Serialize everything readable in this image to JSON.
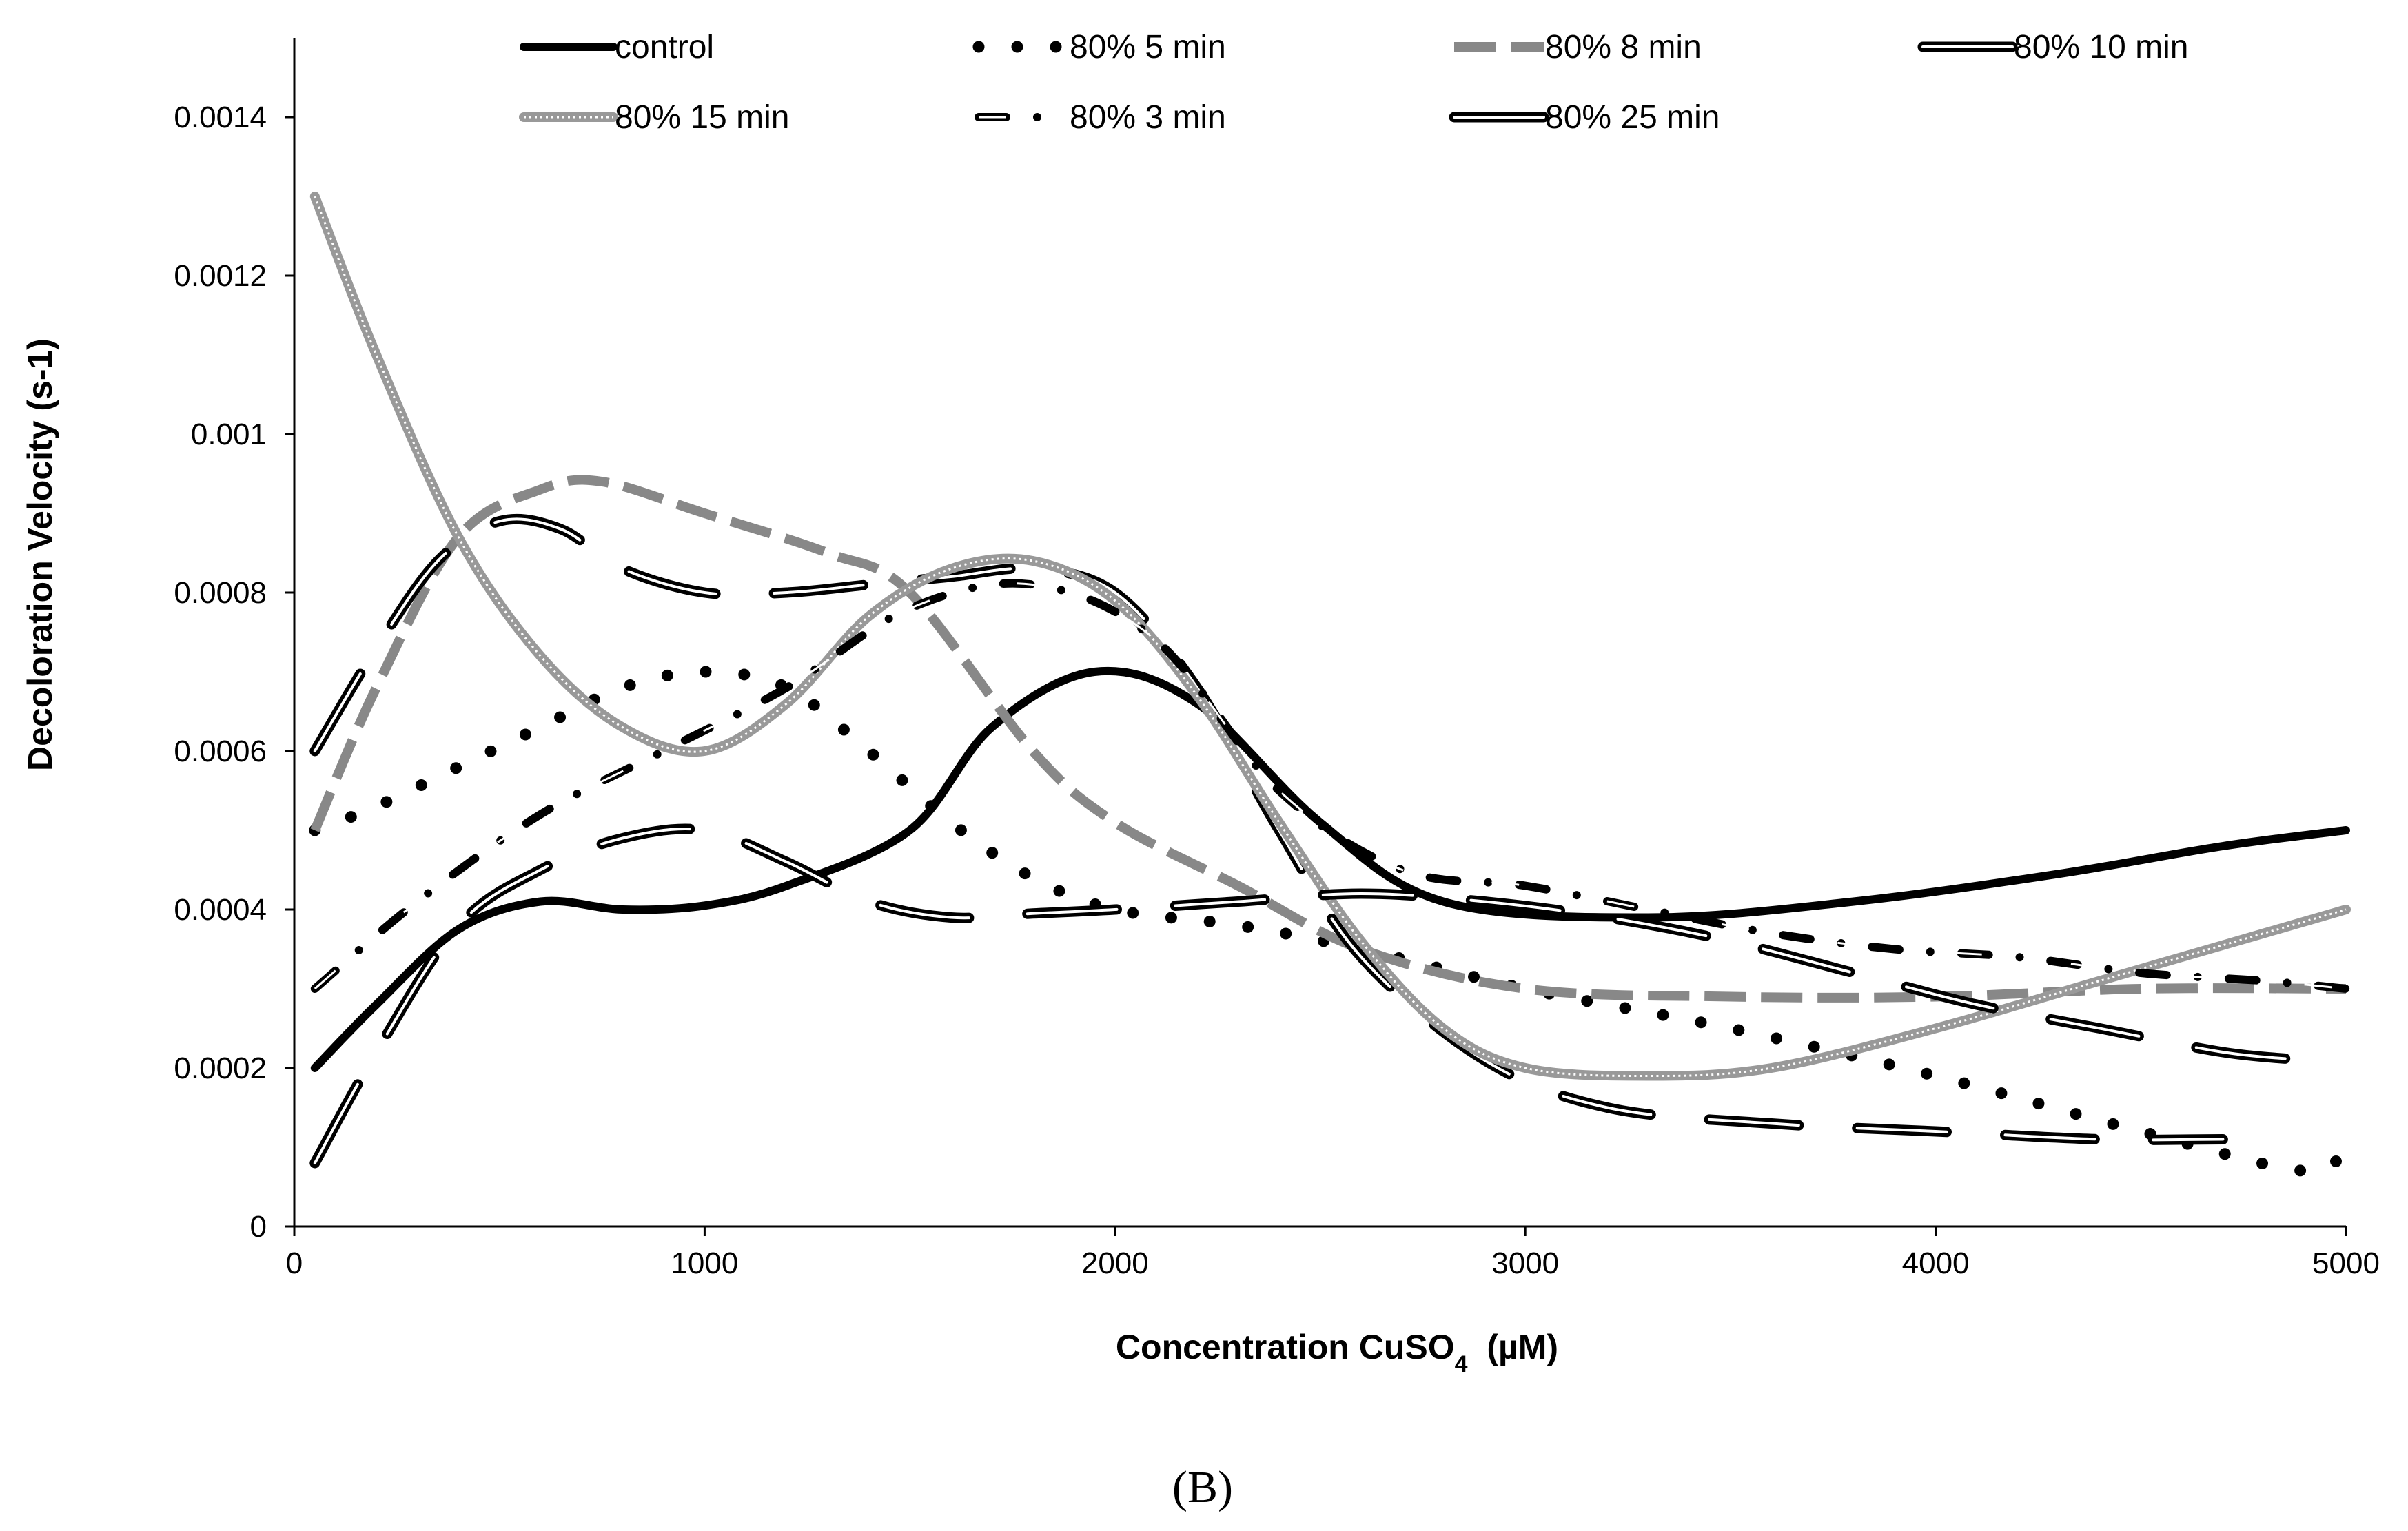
{
  "chart_data": {
    "type": "line",
    "xlabel": "Concentration CuSO4 (µM)",
    "xlabel_parts": {
      "main": "Concentration CuSO",
      "sub": "4",
      "unit": "  (µM)"
    },
    "ylabel": "Decoloration Velocity (s-1)",
    "panel_label": "(B)",
    "xlim": [
      0,
      5000
    ],
    "ylim": [
      0,
      0.0015
    ],
    "xticks": [
      0,
      1000,
      2000,
      3000,
      4000,
      5000
    ],
    "xtick_labels": [
      "0",
      "1000",
      "2000",
      "3000",
      "4000",
      "5000"
    ],
    "yticks": [
      0,
      0.0002,
      0.0004,
      0.0006,
      0.0008,
      0.001,
      0.0012,
      0.0014
    ],
    "ytick_labels": [
      "0",
      "0.0002",
      "0.0004",
      "0.0006",
      "0.0008",
      "0.001",
      "0.0012",
      "0.0014"
    ],
    "grid": false,
    "legend_position": "top",
    "series": [
      {
        "name": "control",
        "color": "#000000",
        "style": "solid",
        "x": [
          50,
          200,
          400,
          600,
          800,
          1000,
          1200,
          1500,
          1700,
          1950,
          2200,
          2500,
          2800,
          3300,
          3800,
          4300,
          4700,
          5000
        ],
        "y": [
          0.0002,
          0.00028,
          0.000375,
          0.00041,
          0.0004,
          0.000405,
          0.00043,
          0.0005,
          0.00063,
          0.0007,
          0.00066,
          0.00051,
          0.00041,
          0.00039,
          0.00041,
          0.000445,
          0.00048,
          0.0005
        ]
      },
      {
        "name": "80% 5 min",
        "color": "#000000",
        "style": "dotted",
        "x": [
          50,
          200,
          400,
          600,
          800,
          1000,
          1200,
          1400,
          1600,
          1800,
          2000,
          2300,
          2600,
          3000,
          3500,
          4000,
          4500,
          4900,
          5000
        ],
        "y": [
          0.0005,
          0.00053,
          0.00058,
          0.00063,
          0.00068,
          0.0007,
          0.00068,
          0.0006,
          0.00051,
          0.00044,
          0.0004,
          0.00038,
          0.00035,
          0.0003,
          0.00025,
          0.00019,
          0.00012,
          7e-05,
          0.0001
        ]
      },
      {
        "name": "80% 8 min",
        "color": "#888888",
        "style": "dashed",
        "x": [
          50,
          200,
          400,
          600,
          750,
          1000,
          1300,
          1500,
          1800,
          2000,
          2300,
          2600,
          3000,
          3500,
          4000,
          4500,
          5000
        ],
        "y": [
          0.0005,
          0.00068,
          0.00087,
          0.00093,
          0.00094,
          0.0009,
          0.00085,
          0.0008,
          0.0006,
          0.00051,
          0.00043,
          0.00035,
          0.0003,
          0.00029,
          0.00029,
          0.0003,
          0.0003
        ]
      },
      {
        "name": "80% 10 min",
        "color": "#000000",
        "style": "double-longdash",
        "x": [
          50,
          200,
          350,
          500,
          650,
          800,
          1000,
          1200,
          1400,
          1600,
          1800,
          2000,
          2200,
          2400,
          2600,
          2900,
          3200,
          3600,
          4000,
          4400,
          4700
        ],
        "y": [
          0.0006,
          0.00073,
          0.00084,
          0.00089,
          0.00088,
          0.00083,
          0.0008,
          0.0008,
          0.00081,
          0.00082,
          0.00083,
          0.0008,
          0.00068,
          0.0005,
          0.00034,
          0.00021,
          0.00015,
          0.00013,
          0.00012,
          0.00011,
          0.00011
        ]
      },
      {
        "name": "80% 15 min",
        "color": "#999999",
        "style": "dotted-thick",
        "x": [
          50,
          200,
          400,
          600,
          800,
          1000,
          1200,
          1400,
          1600,
          1800,
          2000,
          2200,
          2400,
          2600,
          2800,
          3000,
          3300,
          3600,
          4000,
          4400,
          4800,
          5000
        ],
        "y": [
          0.0013,
          0.0011,
          0.00087,
          0.00072,
          0.00063,
          0.0006,
          0.00066,
          0.00077,
          0.00083,
          0.00084,
          0.00079,
          0.00067,
          0.00051,
          0.00036,
          0.00025,
          0.0002,
          0.00019,
          0.0002,
          0.00025,
          0.00031,
          0.00037,
          0.0004
        ]
      },
      {
        "name": "80% 3 min",
        "color": "#000000",
        "style": "dash-dot",
        "x": [
          50,
          300,
          600,
          900,
          1200,
          1500,
          1800,
          2100,
          2400,
          2700,
          3000,
          3300,
          3600,
          3900,
          4200,
          4500,
          4800,
          5000
        ],
        "y": [
          0.0003,
          0.00041,
          0.00052,
          0.0006,
          0.00068,
          0.00078,
          0.00081,
          0.00074,
          0.00055,
          0.00045,
          0.00043,
          0.0004,
          0.00037,
          0.00035,
          0.00034,
          0.00032,
          0.00031,
          0.0003
        ]
      },
      {
        "name": "80% 25 min",
        "color": "#000000",
        "style": "double-longdash",
        "x": [
          50,
          200,
          400,
          600,
          800,
          1000,
          1200,
          1400,
          1600,
          1800,
          2000,
          2300,
          2600,
          2900,
          3200,
          3500,
          3800,
          4100,
          4400,
          4700,
          4900
        ],
        "y": [
          8e-05,
          0.00022,
          0.00038,
          0.00045,
          0.00049,
          0.0005,
          0.00046,
          0.00041,
          0.00039,
          0.000395,
          0.0004,
          0.00041,
          0.00042,
          0.00041,
          0.00039,
          0.00036,
          0.00032,
          0.00028,
          0.00025,
          0.00022,
          0.00021
        ]
      }
    ]
  }
}
